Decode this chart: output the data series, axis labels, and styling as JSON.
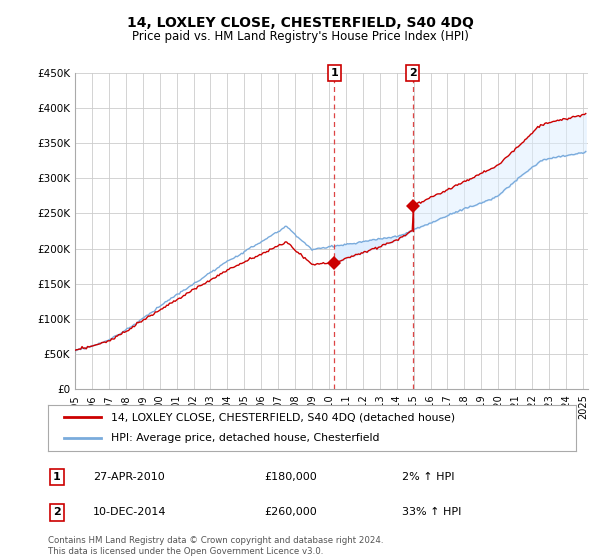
{
  "title": "14, LOXLEY CLOSE, CHESTERFIELD, S40 4DQ",
  "subtitle": "Price paid vs. HM Land Registry's House Price Index (HPI)",
  "ylabel_ticks": [
    "£0",
    "£50K",
    "£100K",
    "£150K",
    "£200K",
    "£250K",
    "£300K",
    "£350K",
    "£400K",
    "£450K"
  ],
  "ylabel_values": [
    0,
    50000,
    100000,
    150000,
    200000,
    250000,
    300000,
    350000,
    400000,
    450000
  ],
  "ylim": [
    0,
    450000
  ],
  "xlim_start": 1995.0,
  "xlim_end": 2025.3,
  "sale1_date": 2010.32,
  "sale1_price": 180000,
  "sale2_date": 2014.94,
  "sale2_price": 260000,
  "legend_property": "14, LOXLEY CLOSE, CHESTERFIELD, S40 4DQ (detached house)",
  "legend_hpi": "HPI: Average price, detached house, Chesterfield",
  "footnote": "Contains HM Land Registry data © Crown copyright and database right 2024.\nThis data is licensed under the Open Government Licence v3.0.",
  "line_color_red": "#cc0000",
  "line_color_blue": "#7aabdc",
  "bg_color": "#ffffff",
  "grid_color": "#cccccc",
  "vline_color": "#dd4444",
  "shade_color": "#ddeeff",
  "box_color": "#cc0000",
  "fig_width": 6.0,
  "fig_height": 5.6,
  "dpi": 100
}
